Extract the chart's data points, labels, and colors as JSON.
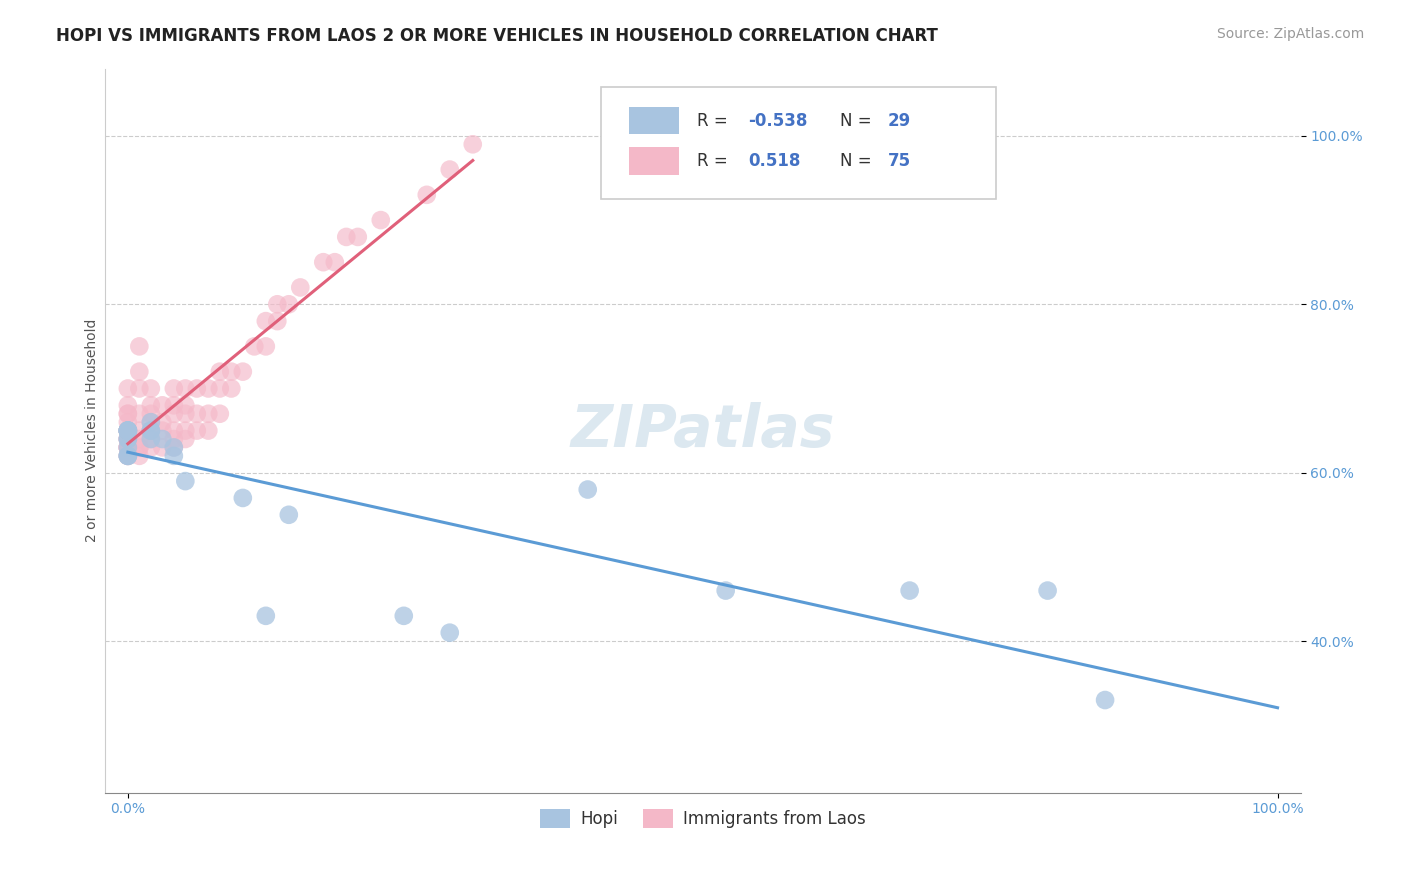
{
  "title": "HOPI VS IMMIGRANTS FROM LAOS 2 OR MORE VEHICLES IN HOUSEHOLD CORRELATION CHART",
  "source_text": "Source: ZipAtlas.com",
  "ylabel": "2 or more Vehicles in Household",
  "xlim": [
    -0.02,
    1.02
  ],
  "ylim": [
    0.22,
    1.08
  ],
  "watermark": "ZIPatlas",
  "hopi_R": -0.538,
  "hopi_N": 29,
  "laos_R": 0.518,
  "laos_N": 75,
  "hopi_color": "#a8c4e0",
  "laos_color": "#f4b8c8",
  "hopi_line_color": "#5b9bd5",
  "laos_line_color": "#e0607a",
  "hopi_x": [
    0.0,
    0.0,
    0.0,
    0.0,
    0.0,
    0.0,
    0.0,
    0.0,
    0.0,
    0.0,
    0.0,
    0.02,
    0.02,
    0.02,
    0.02,
    0.03,
    0.04,
    0.04,
    0.05,
    0.1,
    0.12,
    0.14,
    0.24,
    0.28,
    0.4,
    0.52,
    0.68,
    0.8,
    0.85
  ],
  "hopi_y": [
    0.62,
    0.62,
    0.62,
    0.63,
    0.64,
    0.64,
    0.65,
    0.65,
    0.65,
    0.65,
    0.65,
    0.64,
    0.65,
    0.65,
    0.66,
    0.64,
    0.62,
    0.63,
    0.59,
    0.57,
    0.43,
    0.55,
    0.43,
    0.41,
    0.58,
    0.46,
    0.46,
    0.46,
    0.33
  ],
  "laos_x": [
    0.0,
    0.0,
    0.0,
    0.0,
    0.0,
    0.0,
    0.0,
    0.0,
    0.0,
    0.0,
    0.0,
    0.0,
    0.0,
    0.0,
    0.0,
    0.0,
    0.0,
    0.01,
    0.01,
    0.01,
    0.01,
    0.01,
    0.01,
    0.01,
    0.01,
    0.01,
    0.02,
    0.02,
    0.02,
    0.02,
    0.02,
    0.02,
    0.02,
    0.03,
    0.03,
    0.03,
    0.03,
    0.04,
    0.04,
    0.04,
    0.04,
    0.04,
    0.04,
    0.05,
    0.05,
    0.05,
    0.05,
    0.05,
    0.06,
    0.06,
    0.06,
    0.07,
    0.07,
    0.07,
    0.08,
    0.08,
    0.08,
    0.09,
    0.09,
    0.1,
    0.11,
    0.12,
    0.12,
    0.13,
    0.13,
    0.14,
    0.15,
    0.17,
    0.18,
    0.19,
    0.2,
    0.22,
    0.26,
    0.28,
    0.3
  ],
  "laos_y": [
    0.62,
    0.62,
    0.63,
    0.63,
    0.63,
    0.63,
    0.64,
    0.64,
    0.64,
    0.65,
    0.65,
    0.65,
    0.66,
    0.67,
    0.67,
    0.68,
    0.7,
    0.62,
    0.63,
    0.63,
    0.64,
    0.65,
    0.67,
    0.7,
    0.72,
    0.75,
    0.63,
    0.64,
    0.65,
    0.66,
    0.67,
    0.68,
    0.7,
    0.63,
    0.65,
    0.66,
    0.68,
    0.63,
    0.64,
    0.65,
    0.67,
    0.68,
    0.7,
    0.64,
    0.65,
    0.67,
    0.68,
    0.7,
    0.65,
    0.67,
    0.7,
    0.65,
    0.67,
    0.7,
    0.67,
    0.7,
    0.72,
    0.7,
    0.72,
    0.72,
    0.75,
    0.75,
    0.78,
    0.78,
    0.8,
    0.8,
    0.82,
    0.85,
    0.85,
    0.88,
    0.88,
    0.9,
    0.93,
    0.96,
    0.99
  ],
  "title_fontsize": 12,
  "axis_label_fontsize": 10,
  "tick_fontsize": 10,
  "legend_fontsize": 12,
  "source_fontsize": 10,
  "watermark_fontsize": 42,
  "watermark_color": "#dce8f0",
  "background_color": "#ffffff",
  "grid_color": "#cccccc",
  "yticks": [
    0.4,
    0.6,
    0.8,
    1.0
  ],
  "ytick_labels": [
    "40.0%",
    "60.0%",
    "80.0%",
    "100.0%"
  ],
  "xticks": [
    0.0,
    1.0
  ],
  "xtick_labels": [
    "0.0%",
    "100.0%"
  ]
}
